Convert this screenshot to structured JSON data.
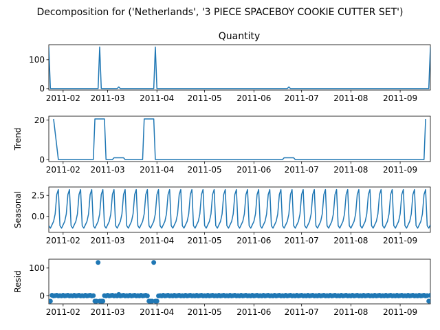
{
  "figure": {
    "suptitle": "Decomposition for ('Netherlands', '3 PIECE SPACEBOY COOKIE CUTTER SET')",
    "line_color": "#1f77b4"
  },
  "chart_data": [
    {
      "type": "line",
      "title": "Quantity",
      "ylabel": "",
      "x_range": [
        "2011-01-23",
        "2011-09-20"
      ],
      "ylim": [
        -5,
        152
      ],
      "yticks": [
        "0",
        "100"
      ],
      "xticks": [
        "2011-02",
        "2011-03",
        "2011-04",
        "2011-05",
        "2011-06",
        "2011-07",
        "2011-08",
        "2011-09"
      ],
      "grid": false,
      "x": [
        "2011-01-23",
        "2011-01-24",
        "2011-02-23",
        "2011-02-24",
        "2011-02-25",
        "2011-03-07",
        "2011-03-08",
        "2011-03-09",
        "2011-03-30",
        "2011-03-31",
        "2011-04-01",
        "2011-06-22",
        "2011-06-23",
        "2011-06-24",
        "2011-09-19",
        "2011-09-20"
      ],
      "values": [
        144,
        0,
        0,
        144,
        0,
        0,
        6,
        0,
        0,
        144,
        0,
        0,
        6,
        0,
        0,
        144
      ]
    },
    {
      "type": "line",
      "title": "",
      "ylabel": "Trend",
      "x_range": [
        "2011-01-23",
        "2011-09-20"
      ],
      "ylim": [
        -1,
        22
      ],
      "yticks": [
        "0",
        "20"
      ],
      "xticks": [
        "2011-02",
        "2011-03",
        "2011-04",
        "2011-05",
        "2011-06",
        "2011-07",
        "2011-08",
        "2011-09"
      ],
      "grid": false,
      "x": [
        "2011-01-26",
        "2011-01-29",
        "2011-02-20",
        "2011-02-21",
        "2011-02-27",
        "2011-02-28",
        "2011-03-04",
        "2011-03-05",
        "2011-03-11",
        "2011-03-12",
        "2011-03-23",
        "2011-03-24",
        "2011-03-30",
        "2011-03-31",
        "2011-06-19",
        "2011-06-20",
        "2011-06-26",
        "2011-06-27",
        "2011-09-16",
        "2011-09-17"
      ],
      "values": [
        20.6,
        0,
        0,
        20.6,
        20.6,
        0,
        0,
        0.9,
        0.9,
        0,
        0,
        20.6,
        20.6,
        0,
        0,
        0.9,
        0.9,
        0,
        0,
        20.6
      ]
    },
    {
      "type": "line",
      "title": "",
      "ylabel": "Seasonal",
      "x_range": [
        "2011-01-23",
        "2011-09-20"
      ],
      "ylim": [
        -1.9,
        3.5
      ],
      "yticks": [
        "0.0",
        "2.5"
      ],
      "xticks": [
        "2011-02",
        "2011-03",
        "2011-04",
        "2011-05",
        "2011-06",
        "2011-07",
        "2011-08",
        "2011-09"
      ],
      "grid": false,
      "period_days": 7,
      "weekly_pattern": [
        -1.1,
        -1.4,
        -1.0,
        -0.6,
        0.3,
        2.6,
        3.2
      ],
      "x_start": "2011-01-23",
      "x_end": "2011-09-20"
    },
    {
      "type": "scatter",
      "title": "",
      "ylabel": "Resid",
      "x_range": [
        "2011-01-23",
        "2011-09-20"
      ],
      "ylim": [
        -30,
        132
      ],
      "yticks": [
        "0",
        "100"
      ],
      "xticks": [
        "2011-02",
        "2011-03",
        "2011-04",
        "2011-05",
        "2011-06",
        "2011-07",
        "2011-08",
        "2011-09"
      ],
      "grid": false,
      "baseline": 0,
      "baseline_period_days": 7,
      "baseline_pattern": [
        -1,
        1,
        -1,
        0,
        1,
        -1,
        0
      ],
      "outliers": [
        {
          "x": "2011-01-24",
          "y": -20
        },
        {
          "x": "2011-02-21",
          "y": -20
        },
        {
          "x": "2011-02-22",
          "y": -20
        },
        {
          "x": "2011-02-23",
          "y": 120
        },
        {
          "x": "2011-02-24",
          "y": -20
        },
        {
          "x": "2011-02-25",
          "y": -20
        },
        {
          "x": "2011-02-26",
          "y": -20
        },
        {
          "x": "2011-03-08",
          "y": 4
        },
        {
          "x": "2011-03-27",
          "y": -20
        },
        {
          "x": "2011-03-28",
          "y": -20
        },
        {
          "x": "2011-03-29",
          "y": -20
        },
        {
          "x": "2011-03-30",
          "y": 120
        },
        {
          "x": "2011-03-31",
          "y": -20
        },
        {
          "x": "2011-04-01",
          "y": -20
        },
        {
          "x": "2011-09-19",
          "y": -20
        }
      ]
    }
  ]
}
